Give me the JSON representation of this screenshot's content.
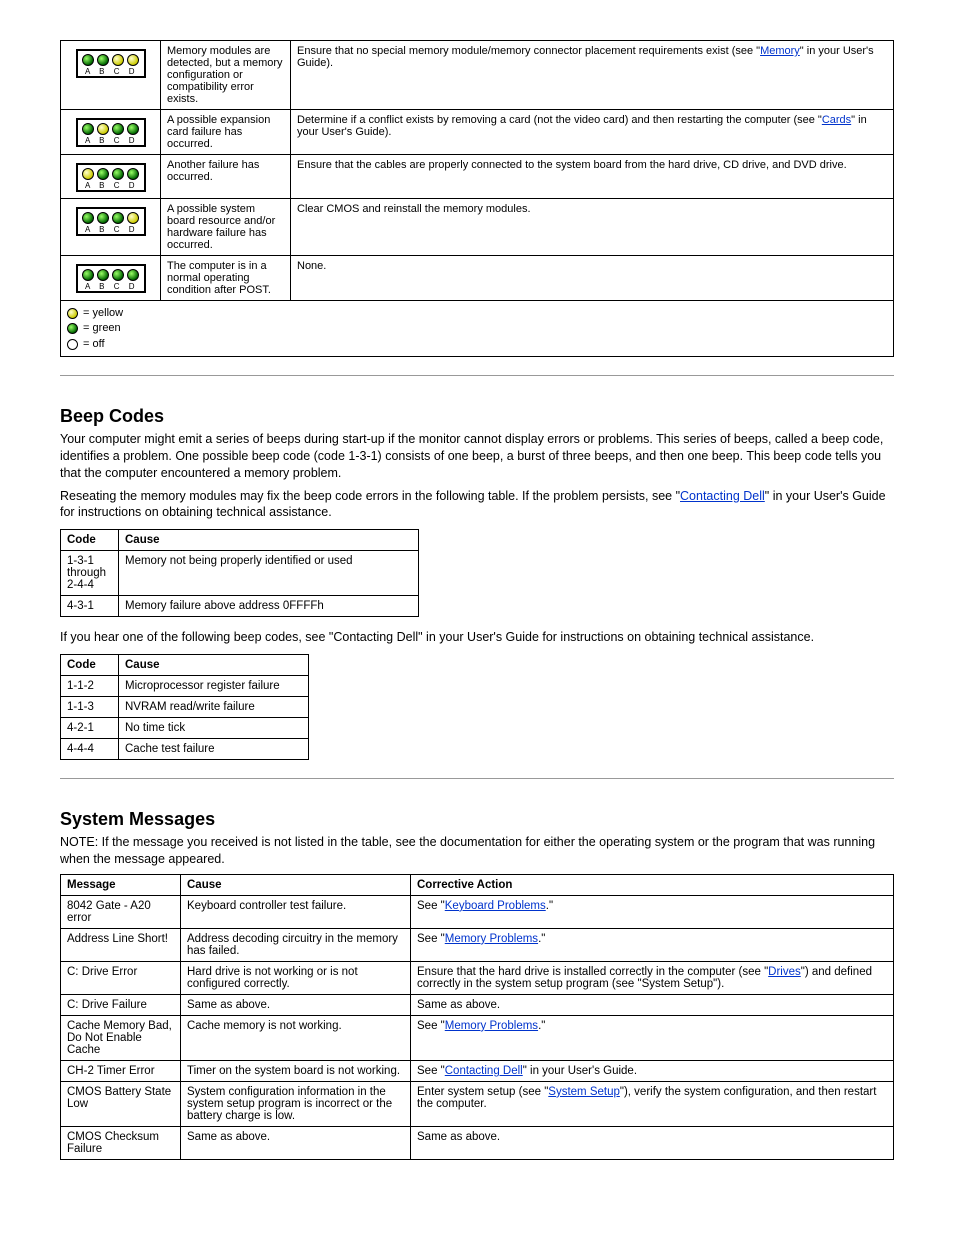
{
  "led_colors": {
    "g": "#008800",
    "y": "#e6e600",
    "o": "#ffffff"
  },
  "led_labels": [
    "A",
    "B",
    "C",
    "D"
  ],
  "diag_rows": [
    {
      "leds": [
        "g",
        "g",
        "y",
        "y"
      ],
      "cause": "Memory modules are detected, but a memory configuration or compatibility error exists.",
      "action_pre": "Ensure that no special memory module/memory connector placement requirements exist (see \"",
      "action_link": "Memory",
      "action_post": "\" in your User's Guide)."
    },
    {
      "leds": [
        "g",
        "y",
        "g",
        "g"
      ],
      "cause": "A possible expansion card failure has occurred.",
      "action_pre": "Determine if a conflict exists by removing a card (not the video card) and then restarting the computer (see \"",
      "action_link": "Cards",
      "action_post": "\" in your User's Guide)."
    },
    {
      "leds": [
        "y",
        "g",
        "g",
        "g"
      ],
      "cause": "Another failure has occurred.",
      "action_pre": "Ensure that the cables are properly connected to the system board from the hard drive, CD drive, and DVD drive.",
      "action_link": "",
      "action_post": ""
    },
    {
      "leds": [
        "g",
        "g",
        "g",
        "y"
      ],
      "cause": "A possible system board resource and/or hardware failure has occurred.",
      "action_pre": "Clear CMOS and reinstall the memory modules.",
      "action_link": "",
      "action_post": ""
    },
    {
      "leds": [
        "g",
        "g",
        "g",
        "g"
      ],
      "cause": "The computer is in a normal operating condition after POST.",
      "action_pre": "None.",
      "action_link": "",
      "action_post": ""
    }
  ],
  "legend": [
    {
      "cls": "y",
      "label": "= yellow"
    },
    {
      "cls": "g",
      "label": "= green"
    },
    {
      "cls": "o",
      "label": "= off"
    }
  ],
  "beep": {
    "heading": "Beep Codes",
    "para1_pre": "Your computer might emit a series of beeps during start-up if the monitor cannot display errors or problems. This series of beeps, called a beep code, identifies a problem. One possible beep code (code 1-3-1) consists of one beep, a burst of three beeps, and then one beep. This beep code tells you that the computer encountered a memory problem.",
    "para2_pre": "Reseating the memory modules may fix the beep code errors in the following table. If the problem persists, see \"",
    "para2_link": "Contacting Dell",
    "para2_post": "\" in your User's Guide for instructions on obtaining technical assistance.",
    "table1_title": "",
    "table1": [
      {
        "code": "Code",
        "cause": "Cause",
        "header": true
      },
      {
        "code": "1-3-1 through 2-4-4",
        "cause": "Memory not being properly identified or used"
      },
      {
        "code": "4-3-1",
        "cause": "Memory failure above address 0FFFFh"
      }
    ],
    "para3": "If you hear one of the following beep codes, see \"Contacting Dell\" in your User's Guide for instructions on obtaining technical assistance.",
    "table2": [
      {
        "code": "Code",
        "cause": "Cause",
        "header": true
      },
      {
        "code": "1-1-2",
        "cause": "Microprocessor register failure"
      },
      {
        "code": "1-1-3",
        "cause": "NVRAM read/write failure"
      },
      {
        "code": "4-2-1",
        "cause": "No time tick"
      },
      {
        "code": "4-4-4",
        "cause": "Cache test failure"
      }
    ]
  },
  "msgs": {
    "heading": "System Messages",
    "note": "NOTE: If the message you received is not listed in the table, see the documentation for either the operating system or the program that was running when the message appeared.",
    "table": [
      {
        "msg": "Message",
        "cause": "Cause",
        "action": "Corrective Action",
        "header": true
      },
      {
        "msg": "8042 Gate - A20 error",
        "cause": "Keyboard controller test failure.",
        "action_pre": "See \"",
        "action_link": "Keyboard Problems",
        "action_post": ".\""
      },
      {
        "msg": "Address Line Short!",
        "cause": "Address decoding circuitry in the memory has failed.",
        "action_pre": "See \"",
        "action_link": "Memory Problems",
        "action_post": ".\""
      },
      {
        "msg": "C: Drive Error",
        "cause": "Hard drive is not working or is not configured correctly.",
        "action_pre": "Ensure that the hard drive is installed correctly in the computer (see \"",
        "action_link": "Drives",
        "action_post": "\") and defined correctly in the system setup program (see \"System Setup\")."
      },
      {
        "msg": "C: Drive Failure",
        "cause": "Same as above.",
        "action_pre": "Same as above.",
        "action_link": "",
        "action_post": ""
      },
      {
        "msg": "Cache Memory Bad, Do Not Enable Cache",
        "cause": "Cache memory is not working.",
        "action_pre": "See \"",
        "action_link": "Memory Problems",
        "action_post": ".\""
      },
      {
        "msg": "CH-2 Timer Error",
        "cause": "Timer on the system board is not working.",
        "action_pre": "See \"",
        "action_link": "Contacting Dell",
        "action_post": "\" in your User's Guide."
      },
      {
        "msg": "CMOS Battery State Low",
        "cause": "System configuration information in the system setup program is incorrect or the battery charge is low.",
        "action_pre": "Enter system setup (see \"",
        "action_link": "System Setup",
        "action_post": "\"), verify the system configuration, and then restart the computer."
      },
      {
        "msg": "CMOS Checksum Failure",
        "cause": "Same as above.",
        "action_pre": "Same as above.",
        "action_link": "",
        "action_post": ""
      }
    ]
  }
}
